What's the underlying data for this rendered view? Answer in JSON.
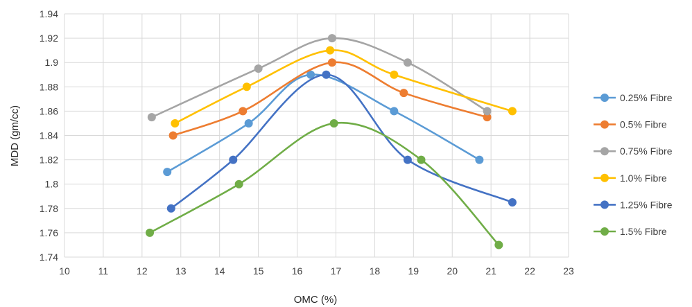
{
  "chart_data": {
    "type": "line",
    "title": "",
    "xlabel": "OMC (%)",
    "ylabel": "MDD (gm/cc)",
    "xlim": [
      10,
      23
    ],
    "ylim": [
      1.74,
      1.94
    ],
    "xticks": [
      "10",
      "11",
      "12",
      "13",
      "14",
      "15",
      "16",
      "17",
      "18",
      "19",
      "20",
      "21",
      "22",
      "23"
    ],
    "yticks": [
      "1.74",
      "1.76",
      "1.78",
      "1.8",
      "1.82",
      "1.84",
      "1.86",
      "1.88",
      "1.9",
      "1.92",
      "1.94"
    ],
    "grid": true,
    "smooth": true,
    "legend_position": "right",
    "series": [
      {
        "name": "0.25% Fibre",
        "color": "#5B9BD5",
        "x": [
          12.65,
          14.75,
          16.35,
          18.5,
          20.7
        ],
        "y": [
          1.81,
          1.85,
          1.89,
          1.86,
          1.82
        ]
      },
      {
        "name": "0.5% Fibre",
        "color": "#ED7D31",
        "x": [
          12.8,
          14.6,
          16.9,
          18.75,
          20.9
        ],
        "y": [
          1.84,
          1.86,
          1.9,
          1.875,
          1.855
        ]
      },
      {
        "name": "0.75% Fibre",
        "color": "#A5A5A5",
        "x": [
          12.25,
          15.0,
          16.9,
          18.85,
          20.9
        ],
        "y": [
          1.855,
          1.895,
          1.92,
          1.9,
          1.86
        ]
      },
      {
        "name": "1.0% Fibre",
        "color": "#FFC000",
        "x": [
          12.85,
          14.7,
          16.85,
          18.5,
          21.55
        ],
        "y": [
          1.85,
          1.88,
          1.91,
          1.89,
          1.86
        ]
      },
      {
        "name": "1.25% Fibre",
        "color": "#4472C4",
        "x": [
          12.75,
          14.35,
          16.75,
          18.85,
          21.55
        ],
        "y": [
          1.78,
          1.82,
          1.89,
          1.82,
          1.785
        ]
      },
      {
        "name": "1.5% Fibre",
        "color": "#70AD47",
        "x": [
          12.2,
          14.5,
          16.95,
          19.2,
          21.2
        ],
        "y": [
          1.76,
          1.8,
          1.85,
          1.82,
          1.75
        ]
      }
    ]
  }
}
